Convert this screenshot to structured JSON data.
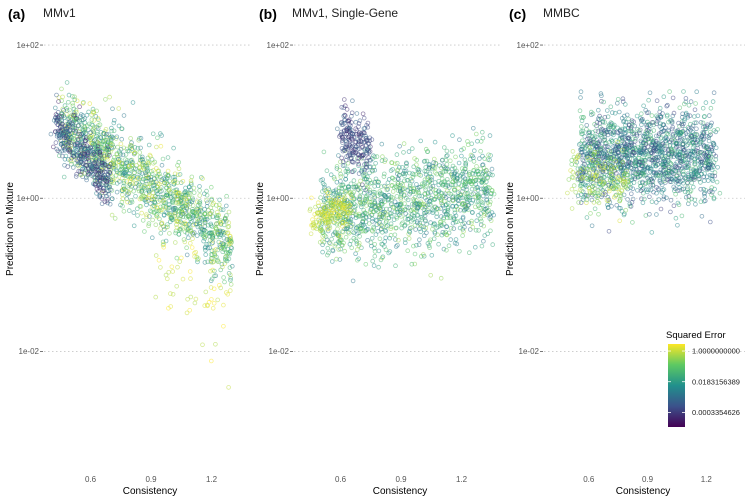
{
  "chart_data": [
    {
      "type": "scatter",
      "panel_letter": "(a)",
      "title": "MMv1",
      "xlabel": "Consistency",
      "ylabel": "Prediction on Mixture",
      "x_ticks": [
        0.6,
        0.9,
        1.2
      ],
      "x_tick_labels": [
        "0.6",
        "0.9",
        "1.2"
      ],
      "y_scale": "log",
      "y_ticks": [
        0.01,
        1,
        100
      ],
      "y_tick_labels": [
        "1e-02",
        "1e+00",
        "1e+02"
      ],
      "xlim": [
        0.3,
        1.5
      ],
      "ylim": [
        0.0006,
        200
      ],
      "clusters": [
        {
          "x_range": [
            0.45,
            1.3
          ],
          "log10y_at_xmin": 1.0,
          "log10y_at_xmax": -0.6,
          "spread": 0.25,
          "n": 1300,
          "log10_err": [
            0.3,
            -2.5
          ]
        },
        {
          "x_range": [
            0.42,
            0.7
          ],
          "log10y_at_xmin": 0.95,
          "log10y_at_xmax": 0.2,
          "spread": 0.18,
          "n": 350,
          "log10_err": [
            -2.2,
            -4.0
          ]
        },
        {
          "x_range": [
            0.9,
            1.3
          ],
          "log10y_at_xmin": -0.6,
          "log10y_at_xmax": -1.6,
          "spread": 0.35,
          "n": 60,
          "log10_err": [
            0.6,
            -0.3
          ]
        }
      ],
      "grid": true
    },
    {
      "type": "scatter",
      "panel_letter": "(b)",
      "title": "MMv1, Single-Gene",
      "xlabel": "Consistency",
      "ylabel": "Prediction on Mixture",
      "x_ticks": [
        0.6,
        0.9,
        1.2
      ],
      "x_tick_labels": [
        "0.6",
        "0.9",
        "1.2"
      ],
      "y_scale": "log",
      "y_ticks": [
        0.01,
        1,
        100
      ],
      "y_tick_labels": [
        "1e-02",
        "1e+00",
        "1e+02"
      ],
      "xlim": [
        0.3,
        1.5
      ],
      "ylim": [
        0.0006,
        200
      ],
      "clusters": [
        {
          "x_range": [
            0.5,
            1.35
          ],
          "log10y_at_xmin": -0.2,
          "log10y_at_xmax": 0.1,
          "spread": 0.32,
          "n": 1300,
          "log10_err": [
            -0.3,
            -2.6
          ]
        },
        {
          "x_range": [
            0.6,
            0.75
          ],
          "log10y_at_xmin": 0.9,
          "log10y_at_xmax": 0.6,
          "spread": 0.18,
          "n": 200,
          "log10_err": [
            -2.6,
            -3.8
          ]
        },
        {
          "x_range": [
            0.45,
            0.65
          ],
          "log10y_at_xmin": -0.3,
          "log10y_at_xmax": -0.1,
          "spread": 0.12,
          "n": 150,
          "log10_err": [
            0.5,
            -0.4
          ]
        }
      ],
      "grid": true
    },
    {
      "type": "scatter",
      "panel_letter": "(c)",
      "title": "MMBC",
      "xlabel": "Consistency",
      "ylabel": "Prediction on Mixture",
      "x_ticks": [
        0.6,
        0.9,
        1.2
      ],
      "x_tick_labels": [
        "0.6",
        "0.9",
        "1.2"
      ],
      "y_scale": "log",
      "y_ticks": [
        0.01,
        1,
        100
      ],
      "y_tick_labels": [
        "1e-02",
        "1e+00",
        "1e+02"
      ],
      "xlim": [
        0.3,
        1.5
      ],
      "ylim": [
        0.0006,
        200
      ],
      "clusters": [
        {
          "x_range": [
            0.55,
            1.25
          ],
          "log10y_at_xmin": 0.55,
          "log10y_at_xmax": 0.55,
          "spread": 0.3,
          "n": 1500,
          "log10_err": [
            -1.0,
            -3.5
          ]
        },
        {
          "x_range": [
            0.5,
            0.8
          ],
          "log10y_at_xmin": 0.3,
          "log10y_at_xmax": 0.2,
          "spread": 0.2,
          "n": 150,
          "log10_err": [
            0.2,
            -0.8
          ]
        }
      ],
      "grid": true
    }
  ],
  "legend": {
    "title": "Squared Error",
    "colormap": "viridis",
    "scale": "log",
    "labels": [
      "1.0000000000",
      "0.0183156389",
      "0.0003354626"
    ],
    "label_values": [
      1.0,
      0.0183156389,
      0.0003354626
    ],
    "range": [
      5e-05,
      2.5
    ],
    "placement": "bottom-right",
    "colors": [
      "#440154",
      "#3b528b",
      "#21908c",
      "#5dc963",
      "#fde725"
    ]
  }
}
